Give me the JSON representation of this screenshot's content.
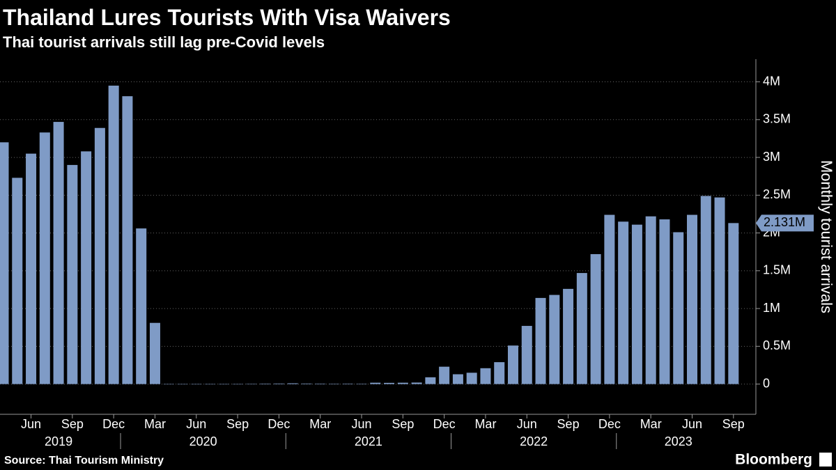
{
  "chart_data": {
    "type": "bar",
    "title": "Thailand Lures Tourists With Visa Waivers",
    "subtitle": "Thai tourist arrivals still lag pre-Covid levels",
    "y_label": "Monthly tourist arrivals",
    "source": "Source: Thai Tourism Ministry",
    "brand": "Bloomberg",
    "color": "#7f9bc6",
    "grid": true,
    "categories": [
      null,
      null,
      "Jun",
      null,
      null,
      "Sep",
      null,
      null,
      "Dec",
      null,
      null,
      "Mar",
      null,
      null,
      "Jun",
      null,
      null,
      "Sep",
      null,
      null,
      "Dec",
      null,
      null,
      "Mar",
      null,
      null,
      "Jun",
      null,
      null,
      "Sep",
      null,
      null,
      "Dec",
      null,
      null,
      "Mar",
      null,
      null,
      "Jun",
      null,
      null,
      "Sep",
      null,
      null,
      "Dec",
      null,
      null,
      "Mar",
      null,
      null,
      "Jun",
      null,
      null,
      "Sep"
    ],
    "years": [
      "2019",
      "2020",
      "2021",
      "2022",
      "2023"
    ],
    "values": [
      3.2,
      2.73,
      3.05,
      3.33,
      3.47,
      2.9,
      3.08,
      3.39,
      3.95,
      3.81,
      2.06,
      0.81,
      0,
      0,
      0,
      0,
      0,
      0,
      0.001,
      0.006,
      0.007,
      0.01,
      0.007,
      0.006,
      0.005,
      0.006,
      0.005,
      0.018,
      0.016,
      0.018,
      0.02,
      0.09,
      0.23,
      0.13,
      0.15,
      0.21,
      0.29,
      0.51,
      0.77,
      1.14,
      1.18,
      1.26,
      1.47,
      1.72,
      2.24,
      2.15,
      2.11,
      2.22,
      2.18,
      2.01,
      2.24,
      2.49,
      2.47,
      2.131
    ],
    "value_labels": [
      null,
      null,
      null,
      null,
      null,
      null,
      null,
      null,
      null,
      null,
      null,
      null,
      null,
      null,
      null,
      null,
      null,
      null,
      null,
      null,
      null,
      null,
      null,
      null,
      null,
      null,
      null,
      null,
      null,
      null,
      null,
      null,
      null,
      null,
      null,
      null,
      null,
      null,
      null,
      null,
      null,
      null,
      null,
      null,
      null,
      null,
      null,
      null,
      null,
      null,
      null,
      null,
      null,
      "2.131M"
    ],
    "ylim": [
      -0.4,
      4.3
    ],
    "yticks": [
      0,
      {
        "value": 0.5,
        "label": "0.5M"
      },
      {
        "value": 1,
        "label": "1M"
      },
      {
        "value": 1.5,
        "label": "1.5M"
      },
      {
        "value": 2,
        "label": "2M"
      },
      {
        "value": 2.5,
        "label": "2.5M"
      },
      {
        "value": 3,
        "label": "3M"
      },
      {
        "value": 3.5,
        "label": "3.5M"
      },
      {
        "value": 4,
        "label": "4M"
      }
    ]
  }
}
